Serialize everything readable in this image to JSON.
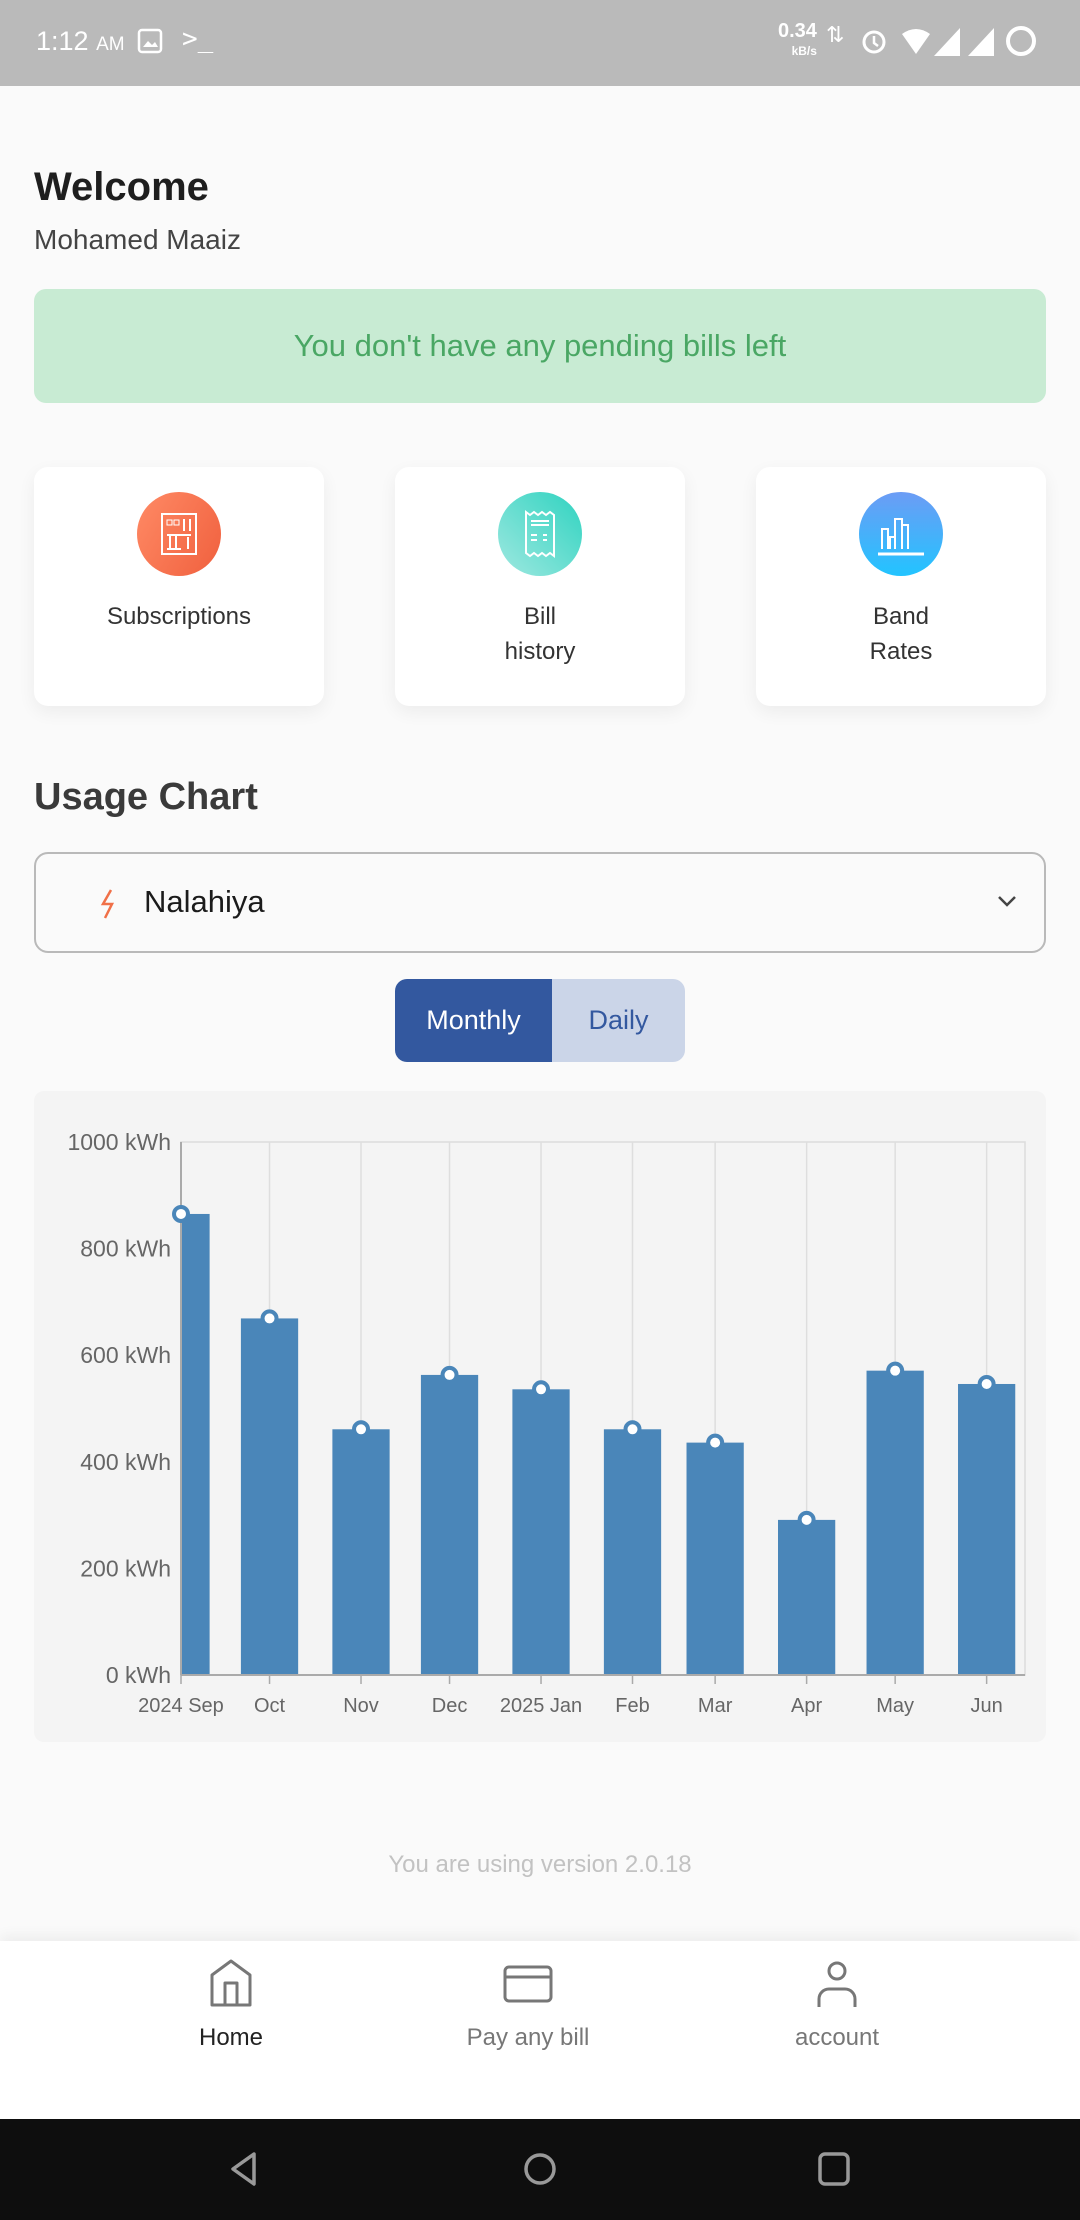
{
  "status_bar": {
    "time": "1:12",
    "ampm": "AM",
    "net_speed": "0.34",
    "net_unit": "kB/s"
  },
  "header": {
    "greeting": "Welcome",
    "user_name": "Mohamed Maaiz"
  },
  "banner": {
    "text": "You don't have any pending bills left",
    "bg": "#c8ebd3",
    "color": "#4aa764"
  },
  "quick_actions": [
    {
      "line1": "Subscriptions",
      "line2": "",
      "icon": "meter-panel-icon",
      "color": "#f26b4a"
    },
    {
      "line1": "Bill",
      "line2": "history",
      "icon": "receipt-icon",
      "color": "#4dd6c4"
    },
    {
      "line1": "Band",
      "line2": "Rates",
      "icon": "bar-chart-icon",
      "color": "#3ea6f5"
    }
  ],
  "usage": {
    "title": "Usage Chart",
    "account": "Nalahiya",
    "toggle": {
      "monthly": "Monthly",
      "daily": "Daily",
      "selected": "Monthly"
    }
  },
  "chart_data": {
    "type": "bar",
    "categories": [
      "2024 Sep",
      "Oct",
      "Nov",
      "Dec",
      "2025 Jan",
      "Feb",
      "Mar",
      "Apr",
      "May",
      "Jun"
    ],
    "x": [
      "2024-09-01",
      "2024-10-01",
      "2024-11-01",
      "2024-12-01",
      "2025-01-01",
      "2025-02-01",
      "2025-03-01",
      "2025-04-01",
      "2025-05-01",
      "2025-06-01"
    ],
    "values": [
      865,
      669,
      461,
      563,
      536,
      461,
      436,
      291,
      571,
      546
    ],
    "unit": "kWh",
    "yticks": [
      "0 kWh",
      "200 kWh",
      "400 kWh",
      "600 kWh",
      "800 kWh",
      "1000 kWh"
    ],
    "ylim": [
      0,
      1000
    ],
    "xlim": [
      "2024-09-01",
      "2025-06-14"
    ],
    "grid": "vertical",
    "bar_color": "#4a86b9"
  },
  "footer": {
    "version_text": "You are using version 2.0.18"
  },
  "bottom_nav": [
    {
      "label": "Home",
      "active": true
    },
    {
      "label": "Pay any bill",
      "active": false
    },
    {
      "label": "account",
      "active": false
    }
  ]
}
